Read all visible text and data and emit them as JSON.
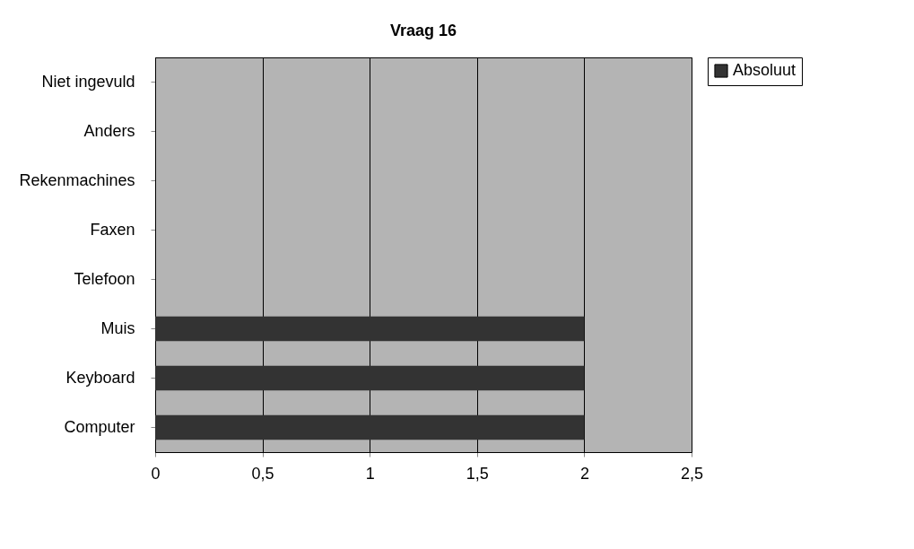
{
  "chart_data": {
    "type": "bar",
    "orientation": "horizontal",
    "title": "Vraag 16",
    "categories": [
      "Niet ingevuld",
      "Anders",
      "Rekenmachines",
      "Faxen",
      "Telefoon",
      "Muis",
      "Keyboard",
      "Computer"
    ],
    "series": [
      {
        "name": "Absoluut",
        "color": "#333333",
        "values": [
          0,
          0,
          0,
          0,
          0,
          2,
          2,
          2
        ]
      }
    ],
    "xlim": [
      0,
      2.5
    ],
    "xticks": [
      0,
      {
        "value": 0.5,
        "label": "0,5"
      },
      1,
      {
        "value": 1.5,
        "label": "1,5"
      },
      2,
      {
        "value": 2.5,
        "label": "2,5"
      }
    ],
    "grid": "x",
    "legend": "right"
  }
}
